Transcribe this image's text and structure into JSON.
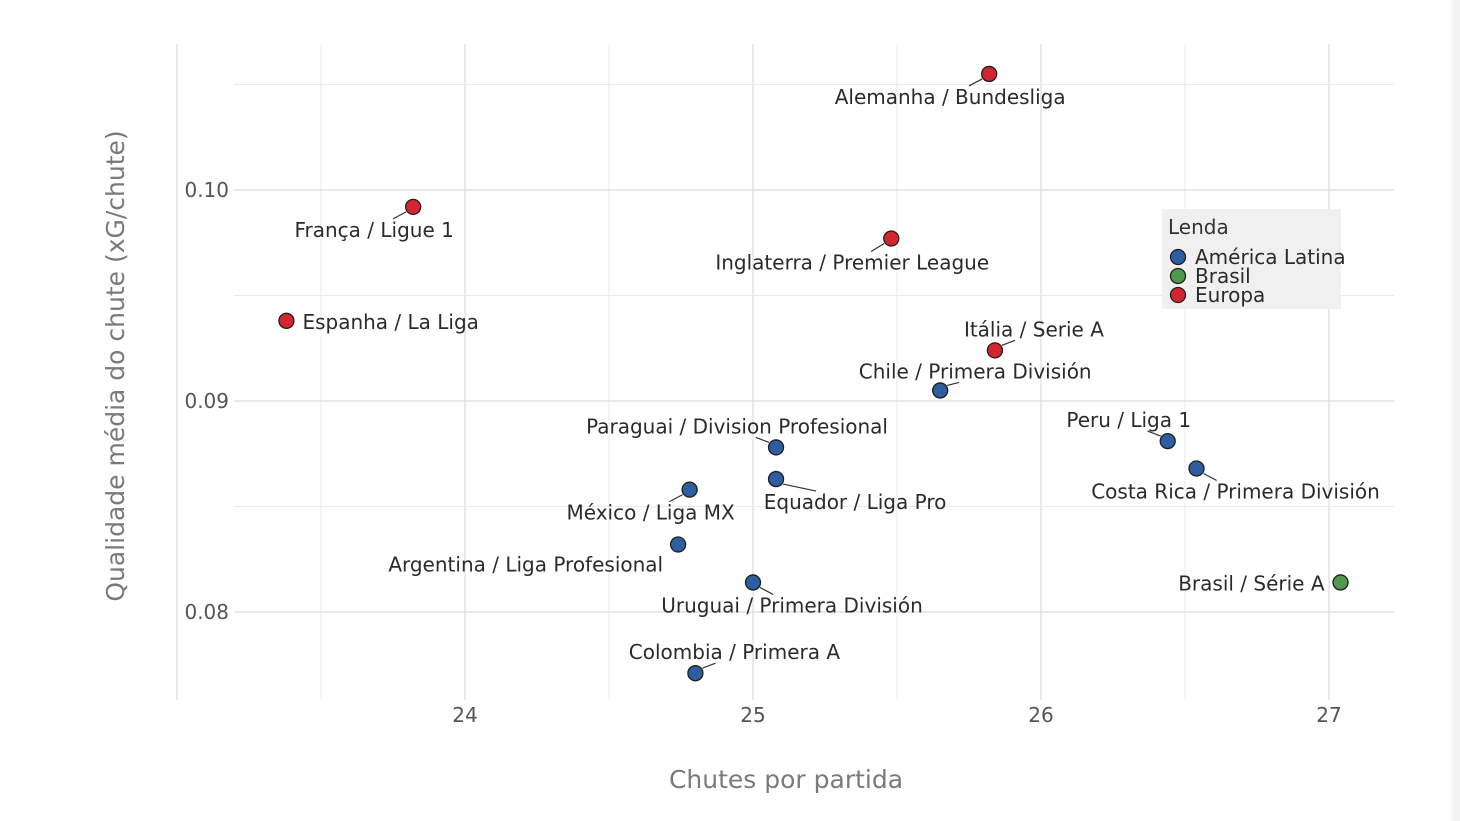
{
  "chart_data": {
    "type": "scatter",
    "xlabel": "Chutes por partida",
    "ylabel": "Qualidade média do chute (xG/chute)",
    "xlim": [
      23.0,
      27.22
    ],
    "ylim": [
      0.0758,
      0.1063
    ],
    "x_ticks": [
      24,
      25,
      26,
      27
    ],
    "x_tick_labels": [
      "24",
      "25",
      "26",
      "27"
    ],
    "y_ticks": [
      0.08,
      0.09,
      0.1
    ],
    "y_tick_labels": [
      "0.08",
      "0.09",
      "0.10"
    ],
    "grid": true,
    "legend": {
      "title": "Lenda",
      "placement": "right",
      "entries": [
        {
          "name": "América Latina",
          "color": "#2d5fa0"
        },
        {
          "name": "Brasil",
          "color": "#4f9a4f"
        },
        {
          "name": "Europa",
          "color": "#d42630"
        }
      ]
    },
    "points": [
      {
        "label": "Alemanha / Bundesliga",
        "group": "Europa",
        "x": 25.82,
        "y": 0.1055
      },
      {
        "label": "França / Ligue 1",
        "group": "Europa",
        "x": 23.82,
        "y": 0.0992
      },
      {
        "label": "Inglaterra / Premier League",
        "group": "Europa",
        "x": 25.48,
        "y": 0.0977
      },
      {
        "label": "Espanha / La Liga",
        "group": "Europa",
        "x": 23.38,
        "y": 0.0938
      },
      {
        "label": "Itália / Serie A",
        "group": "Europa",
        "x": 25.84,
        "y": 0.0924
      },
      {
        "label": "Chile / Primera División",
        "group": "América Latina",
        "x": 25.65,
        "y": 0.0905
      },
      {
        "label": "Paraguai / Division Profesional",
        "group": "América Latina",
        "x": 25.08,
        "y": 0.0878
      },
      {
        "label": "Peru / Liga 1",
        "group": "América Latina",
        "x": 26.44,
        "y": 0.0881
      },
      {
        "label": "Costa Rica / Primera División",
        "group": "América Latina",
        "x": 26.54,
        "y": 0.0868
      },
      {
        "label": "Equador / Liga Pro",
        "group": "América Latina",
        "x": 25.08,
        "y": 0.0863
      },
      {
        "label": "México / Liga MX",
        "group": "América Latina",
        "x": 24.78,
        "y": 0.0858
      },
      {
        "label": "Argentina / Liga Profesional",
        "group": "América Latina",
        "x": 24.74,
        "y": 0.0832
      },
      {
        "label": "Uruguai / Primera División",
        "group": "América Latina",
        "x": 25.0,
        "y": 0.0814
      },
      {
        "label": "Brasil / Série A",
        "group": "Brasil",
        "x": 27.04,
        "y": 0.0814
      },
      {
        "label": "Colombia / Primera A",
        "group": "América Latina",
        "x": 24.8,
        "y": 0.0771
      }
    ]
  }
}
